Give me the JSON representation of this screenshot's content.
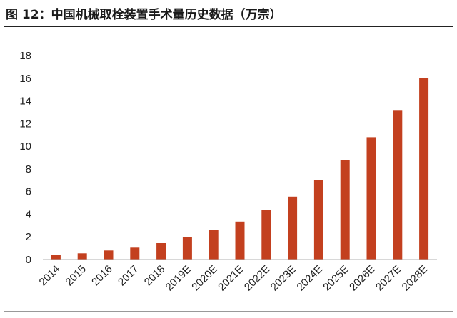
{
  "figure": {
    "title": "图 12：中国机械取栓装置手术量历史数据（万宗）"
  },
  "chart_data": {
    "type": "bar",
    "title": "图 12：中国机械取栓装置手术量历史数据（万宗）",
    "xlabel": "",
    "ylabel": "",
    "categories": [
      "2014",
      "2015",
      "2016",
      "2017",
      "2018",
      "2019E",
      "2020E",
      "2021E",
      "2022E",
      "2023E",
      "2024E",
      "2025E",
      "2026E",
      "2027E",
      "2028E"
    ],
    "series": [
      {
        "values": [
          0.4,
          0.55,
          0.8,
          1.05,
          1.45,
          1.95,
          2.6,
          3.35,
          4.35,
          5.55,
          7.0,
          8.75,
          10.8,
          13.2,
          16.05
        ]
      }
    ],
    "ylim": [
      0,
      18
    ],
    "yticks": [
      0,
      2,
      4,
      6,
      8,
      10,
      12,
      14,
      16,
      18
    ],
    "grid": false,
    "legend": "none",
    "bar_color": "#c3401f"
  }
}
